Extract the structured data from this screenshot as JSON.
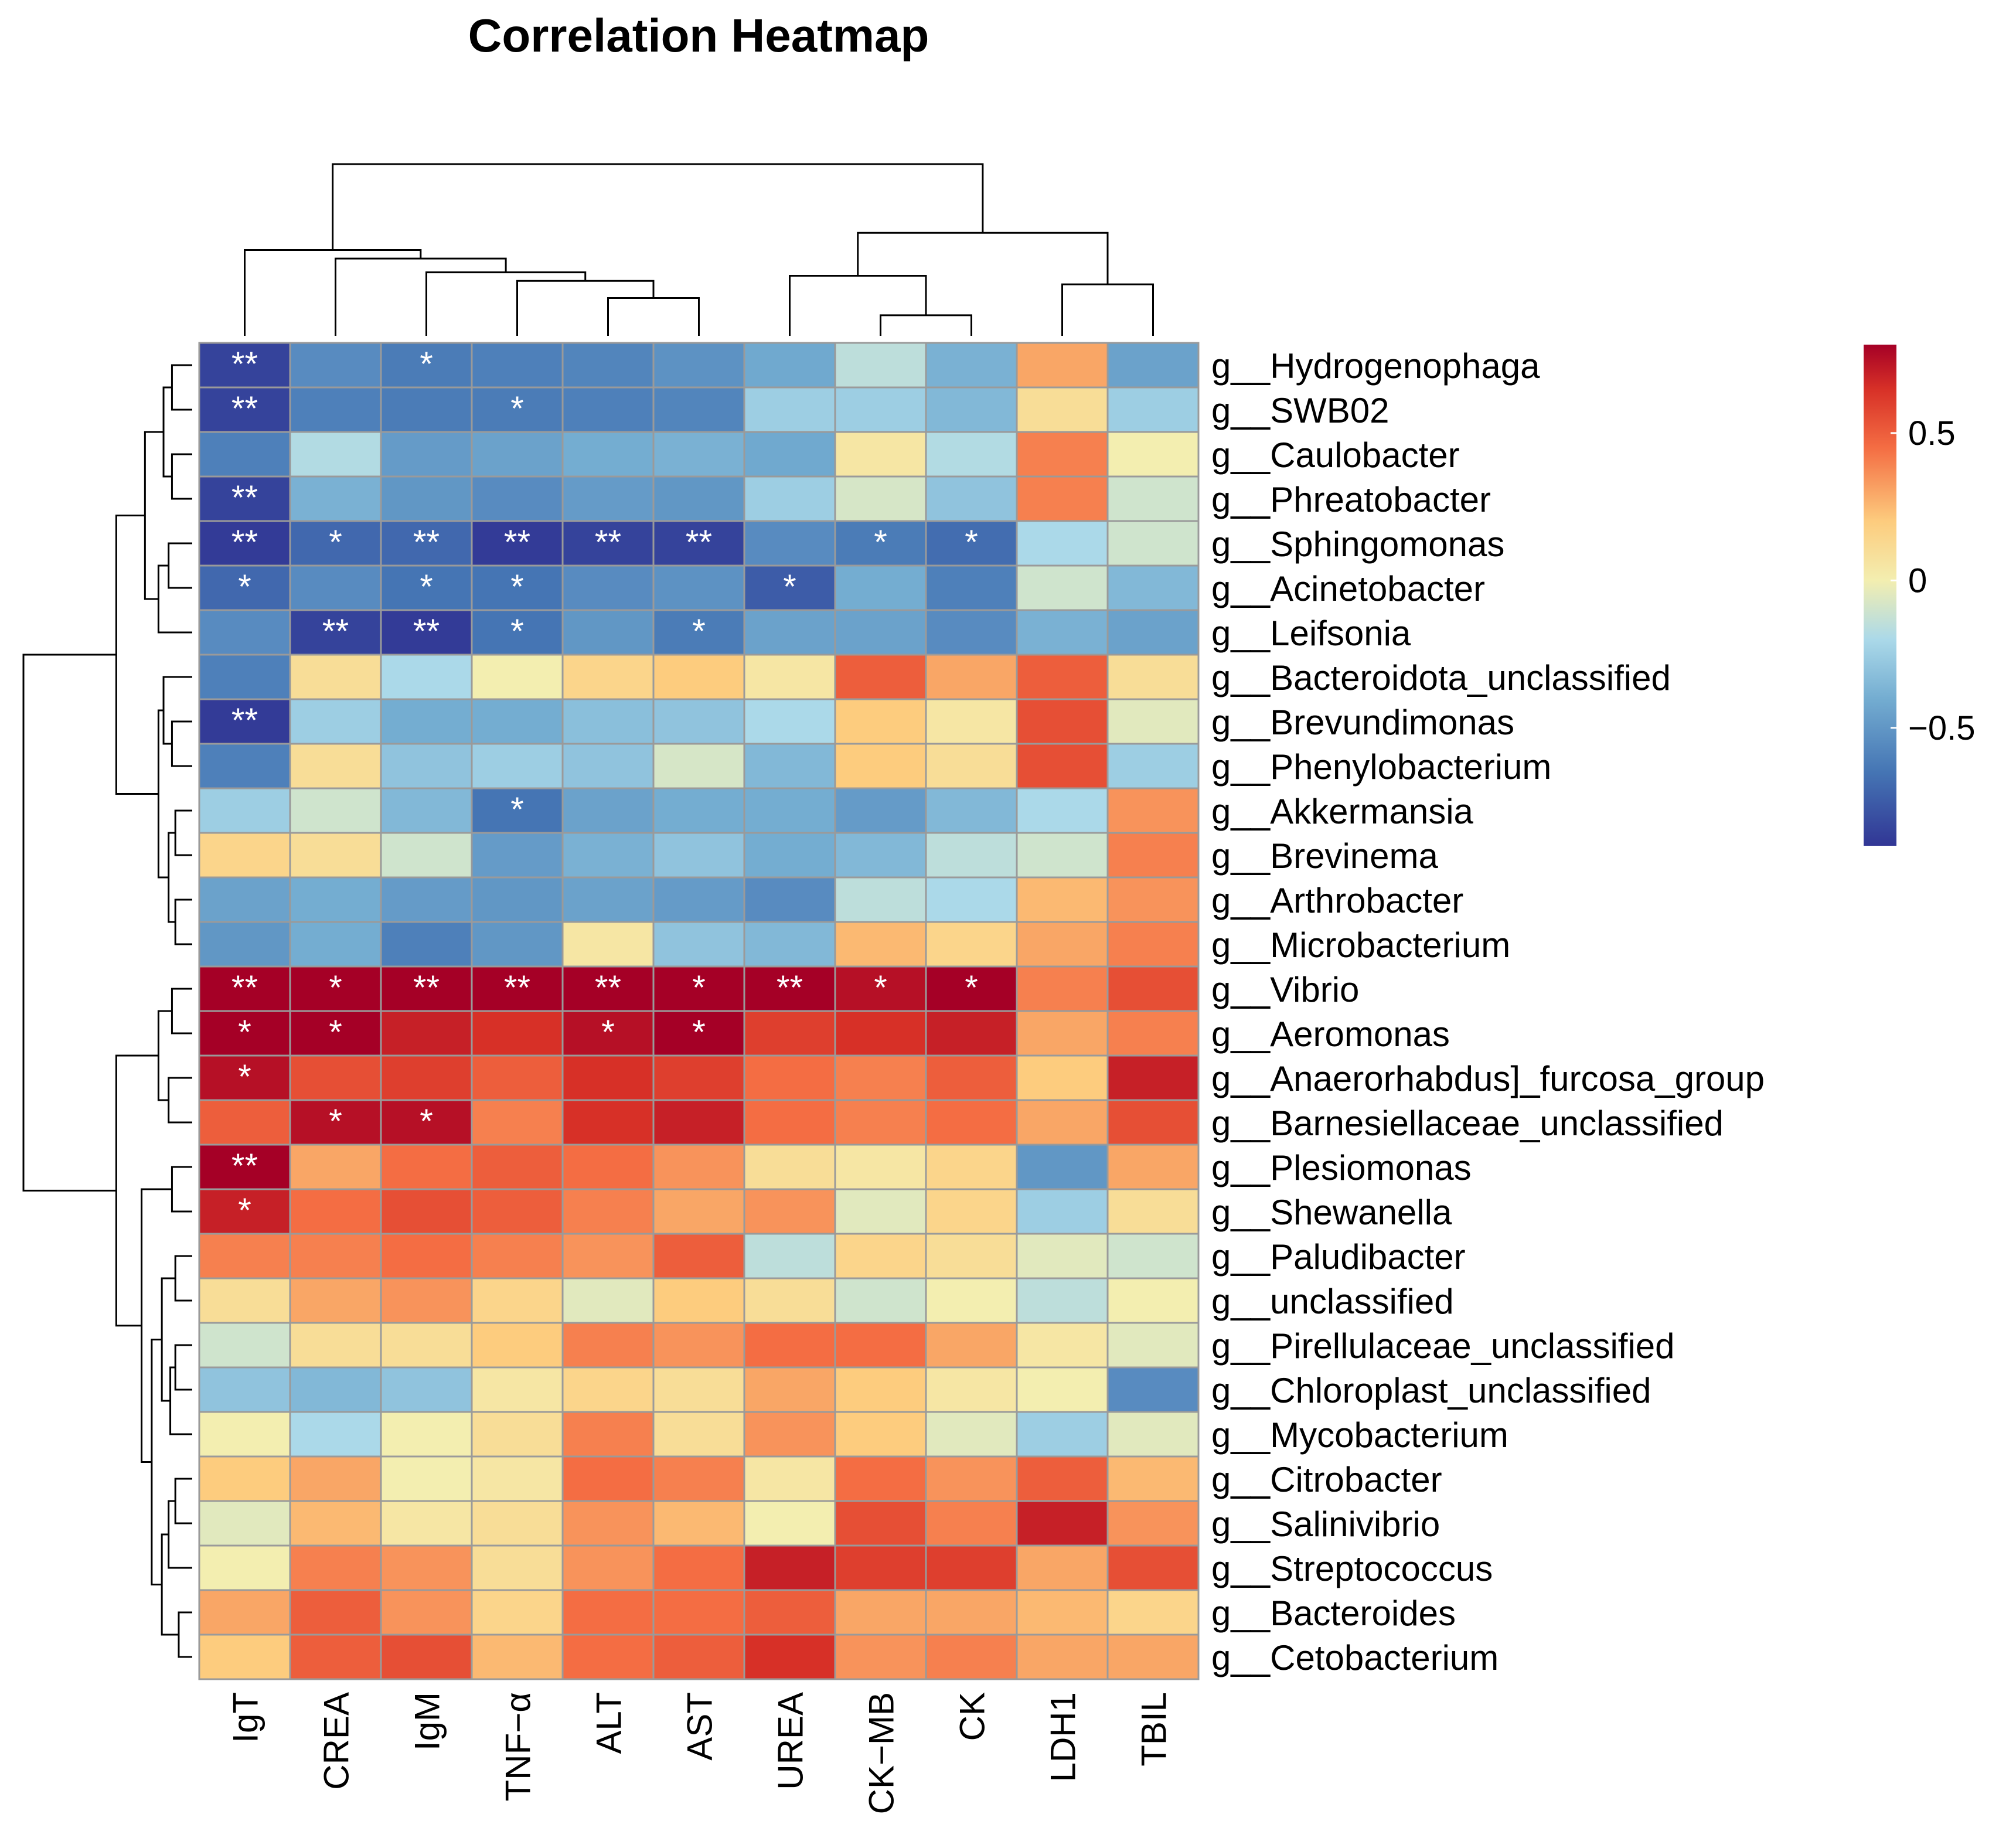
{
  "chart_data": {
    "type": "heatmap",
    "title": "Correlation Heatmap",
    "columns": [
      "IgT",
      "CREA",
      "IgM",
      "TNF−α",
      "ALT",
      "AST",
      "UREA",
      "CK−MB",
      "CK",
      "LDH1",
      "TBIL"
    ],
    "rows": [
      "g__Hydrogenophaga",
      "g__SWB02",
      "g__Caulobacter",
      "g__Phreatobacter",
      "g__Sphingomonas",
      "g__Acinetobacter",
      "g__Leifsonia",
      "g__Bacteroidota_unclassified",
      "g__Brevundimonas",
      "g__Phenylobacterium",
      "g__Akkermansia",
      "g__Brevinema",
      "g__Arthrobacter",
      "g__Microbacterium",
      "g__Vibrio",
      "g__Aeromonas",
      "g__Anaerorhabdus]_furcosa_group",
      "g__Barnesiellaceae_unclassified",
      "g__Plesiomonas",
      "g__Shewanella",
      "g__Paludibacter",
      "g__unclassified",
      "g__Pirellulaceae_unclassified",
      "g__Chloroplast_unclassified",
      "g__Mycobacterium",
      "g__Citrobacter",
      "g__Salinivibrio",
      "g__Streptococcus",
      "g__Bacteroides",
      "g__Cetobacterium"
    ],
    "values": [
      [
        -0.85,
        -0.55,
        -0.62,
        -0.6,
        -0.58,
        -0.52,
        -0.42,
        -0.15,
        -0.38,
        0.3,
        -0.45
      ],
      [
        -0.85,
        -0.6,
        -0.62,
        -0.62,
        -0.6,
        -0.58,
        -0.25,
        -0.25,
        -0.35,
        0.1,
        -0.25
      ],
      [
        -0.6,
        -0.18,
        -0.48,
        -0.45,
        -0.4,
        -0.38,
        -0.42,
        0.05,
        -0.18,
        0.4,
        0.0
      ],
      [
        -0.85,
        -0.38,
        -0.5,
        -0.55,
        -0.48,
        -0.5,
        -0.25,
        -0.08,
        -0.3,
        0.4,
        -0.1
      ],
      [
        -0.88,
        -0.7,
        -0.7,
        -0.88,
        -0.85,
        -0.85,
        -0.55,
        -0.62,
        -0.68,
        -0.2,
        -0.1
      ],
      [
        -0.7,
        -0.55,
        -0.65,
        -0.65,
        -0.55,
        -0.52,
        -0.75,
        -0.4,
        -0.6,
        -0.1,
        -0.35
      ],
      [
        -0.55,
        -0.85,
        -0.88,
        -0.65,
        -0.5,
        -0.62,
        -0.45,
        -0.45,
        -0.55,
        -0.38,
        -0.45
      ],
      [
        -0.6,
        0.1,
        -0.2,
        0.0,
        0.15,
        0.2,
        0.05,
        0.5,
        0.3,
        0.5,
        0.1
      ],
      [
        -0.88,
        -0.25,
        -0.4,
        -0.4,
        -0.32,
        -0.3,
        -0.2,
        0.2,
        0.05,
        0.55,
        -0.05
      ],
      [
        -0.6,
        0.1,
        -0.3,
        -0.25,
        -0.3,
        -0.08,
        -0.35,
        0.2,
        0.1,
        0.55,
        -0.25
      ],
      [
        -0.25,
        -0.1,
        -0.35,
        -0.65,
        -0.45,
        -0.4,
        -0.4,
        -0.48,
        -0.35,
        -0.2,
        0.35
      ],
      [
        0.15,
        0.1,
        -0.1,
        -0.48,
        -0.38,
        -0.3,
        -0.4,
        -0.35,
        -0.15,
        -0.1,
        0.4
      ],
      [
        -0.45,
        -0.4,
        -0.48,
        -0.5,
        -0.45,
        -0.48,
        -0.55,
        -0.15,
        -0.2,
        0.25,
        0.35
      ],
      [
        -0.5,
        -0.4,
        -0.6,
        -0.5,
        0.05,
        -0.3,
        -0.35,
        0.25,
        0.15,
        0.3,
        0.4
      ],
      [
        0.85,
        0.85,
        0.85,
        0.85,
        0.85,
        0.85,
        0.85,
        0.75,
        0.8,
        0.4,
        0.55
      ],
      [
        0.8,
        0.8,
        0.7,
        0.65,
        0.75,
        0.8,
        0.6,
        0.65,
        0.7,
        0.3,
        0.4
      ],
      [
        0.75,
        0.55,
        0.6,
        0.5,
        0.65,
        0.6,
        0.45,
        0.4,
        0.5,
        0.2,
        0.7
      ],
      [
        0.5,
        0.75,
        0.75,
        0.4,
        0.65,
        0.7,
        0.45,
        0.4,
        0.45,
        0.3,
        0.55
      ],
      [
        0.85,
        0.3,
        0.45,
        0.5,
        0.45,
        0.35,
        0.1,
        0.05,
        0.15,
        -0.5,
        0.3
      ],
      [
        0.7,
        0.45,
        0.55,
        0.5,
        0.4,
        0.3,
        0.35,
        -0.05,
        0.15,
        -0.25,
        0.1
      ],
      [
        0.4,
        0.4,
        0.45,
        0.4,
        0.35,
        0.5,
        -0.15,
        0.15,
        0.1,
        -0.05,
        -0.1
      ],
      [
        0.1,
        0.3,
        0.35,
        0.15,
        -0.05,
        0.2,
        0.1,
        -0.1,
        0.0,
        -0.15,
        0.0
      ],
      [
        -0.1,
        0.1,
        0.1,
        0.2,
        0.4,
        0.35,
        0.45,
        0.45,
        0.3,
        0.05,
        -0.05
      ],
      [
        -0.3,
        -0.35,
        -0.3,
        0.05,
        0.15,
        0.1,
        0.3,
        0.2,
        0.05,
        0.0,
        -0.55
      ],
      [
        0.0,
        -0.2,
        0.0,
        0.1,
        0.4,
        0.1,
        0.35,
        0.2,
        -0.05,
        -0.25,
        -0.05
      ],
      [
        0.2,
        0.3,
        0.0,
        0.05,
        0.45,
        0.4,
        0.05,
        0.45,
        0.35,
        0.5,
        0.25
      ],
      [
        -0.05,
        0.25,
        0.05,
        0.1,
        0.35,
        0.25,
        0.0,
        0.55,
        0.4,
        0.7,
        0.35
      ],
      [
        0.0,
        0.4,
        0.35,
        0.1,
        0.35,
        0.45,
        0.7,
        0.6,
        0.6,
        0.3,
        0.55
      ],
      [
        0.3,
        0.5,
        0.35,
        0.15,
        0.45,
        0.45,
        0.5,
        0.3,
        0.3,
        0.25,
        0.15
      ],
      [
        0.2,
        0.5,
        0.55,
        0.25,
        0.45,
        0.5,
        0.65,
        0.35,
        0.4,
        0.3,
        0.3
      ]
    ],
    "significance": [
      [
        "**",
        "",
        "*",
        "",
        "",
        "",
        "",
        "",
        "",
        "",
        ""
      ],
      [
        "**",
        "",
        "",
        "*",
        "",
        "",
        "",
        "",
        "",
        "",
        ""
      ],
      [
        "",
        "",
        "",
        "",
        "",
        "",
        "",
        "",
        "",
        "",
        ""
      ],
      [
        "**",
        "",
        "",
        "",
        "",
        "",
        "",
        "",
        "",
        "",
        ""
      ],
      [
        "**",
        "*",
        "**",
        "**",
        "**",
        "**",
        "",
        "*",
        "*",
        "",
        ""
      ],
      [
        "*",
        "",
        "*",
        "*",
        "",
        "",
        "*",
        "",
        "",
        "",
        ""
      ],
      [
        "",
        "**",
        "**",
        "*",
        "",
        "*",
        "",
        "",
        "",
        "",
        ""
      ],
      [
        "",
        "",
        "",
        "",
        "",
        "",
        "",
        "",
        "",
        "",
        ""
      ],
      [
        "**",
        "",
        "",
        "",
        "",
        "",
        "",
        "",
        "",
        "",
        ""
      ],
      [
        "",
        "",
        "",
        "",
        "",
        "",
        "",
        "",
        "",
        "",
        ""
      ],
      [
        "",
        "",
        "",
        "*",
        "",
        "",
        "",
        "",
        "",
        "",
        ""
      ],
      [
        "",
        "",
        "",
        "",
        "",
        "",
        "",
        "",
        "",
        "",
        ""
      ],
      [
        "",
        "",
        "",
        "",
        "",
        "",
        "",
        "",
        "",
        "",
        ""
      ],
      [
        "",
        "",
        "",
        "",
        "",
        "",
        "",
        "",
        "",
        "",
        ""
      ],
      [
        "**",
        "*",
        "**",
        "**",
        "**",
        "*",
        "**",
        "*",
        "*",
        "",
        ""
      ],
      [
        "*",
        "*",
        "",
        "",
        "*",
        "*",
        "",
        "",
        "",
        "",
        ""
      ],
      [
        "*",
        "",
        "",
        "",
        "",
        "",
        "",
        "",
        "",
        "",
        ""
      ],
      [
        "",
        "*",
        "*",
        "",
        "",
        "",
        "",
        "",
        "",
        "",
        ""
      ],
      [
        "**",
        "",
        "",
        "",
        "",
        "",
        "",
        "",
        "",
        "",
        ""
      ],
      [
        "*",
        "",
        "",
        "",
        "",
        "",
        "",
        "",
        "",
        "",
        ""
      ],
      [
        "",
        "",
        "",
        "",
        "",
        "",
        "",
        "",
        "",
        "",
        ""
      ],
      [
        "",
        "",
        "",
        "",
        "",
        "",
        "",
        "",
        "",
        "",
        ""
      ],
      [
        "",
        "",
        "",
        "",
        "",
        "",
        "",
        "",
        "",
        "",
        ""
      ],
      [
        "",
        "",
        "",
        "",
        "",
        "",
        "",
        "",
        "",
        "",
        ""
      ],
      [
        "",
        "",
        "",
        "",
        "",
        "",
        "",
        "",
        "",
        "",
        ""
      ],
      [
        "",
        "",
        "",
        "",
        "",
        "",
        "",
        "",
        "",
        "",
        ""
      ],
      [
        "",
        "",
        "",
        "",
        "",
        "",
        "",
        "",
        "",
        "",
        ""
      ],
      [
        "",
        "",
        "",
        "",
        "",
        "",
        "",
        "",
        "",
        "",
        ""
      ],
      [
        "",
        "",
        "",
        "",
        "",
        "",
        "",
        "",
        "",
        "",
        ""
      ],
      [
        "",
        "",
        "",
        "",
        "",
        "",
        "",
        "",
        "",
        "",
        ""
      ]
    ],
    "color_scale": {
      "range": [
        -0.9,
        0.8
      ],
      "ticks": [
        {
          "value": 0.5,
          "label": "0.5"
        },
        {
          "value": 0,
          "label": "0"
        },
        {
          "value": -0.5,
          "label": "−0.5"
        }
      ],
      "stops": [
        {
          "value": -0.9,
          "color": "#313695"
        },
        {
          "value": -0.65,
          "color": "#4575b4"
        },
        {
          "value": -0.4,
          "color": "#74add1"
        },
        {
          "value": -0.2,
          "color": "#abd9e9"
        },
        {
          "value": 0.0,
          "color": "#f3eeb0"
        },
        {
          "value": 0.2,
          "color": "#fdcc7e"
        },
        {
          "value": 0.45,
          "color": "#f46d43"
        },
        {
          "value": 0.65,
          "color": "#d73027"
        },
        {
          "value": 0.8,
          "color": "#a50026"
        }
      ]
    },
    "column_dendrogram": {
      "leaves": 11,
      "merges": [
        {
          "a": {
            "leaf": 7
          },
          "b": {
            "leaf": 8
          },
          "h": 0.12
        },
        {
          "a": {
            "leaf": 9
          },
          "b": {
            "leaf": 10
          },
          "h": 0.3
        },
        {
          "a": {
            "leaf": 4
          },
          "b": {
            "leaf": 5
          },
          "h": 0.22
        },
        {
          "a": {
            "leaf": 6
          },
          "b": {
            "node": 0
          },
          "h": 0.35
        },
        {
          "a": {
            "node": 3
          },
          "b": {
            "node": 1
          },
          "h": 0.6
        },
        {
          "a": {
            "leaf": 3
          },
          "b": {
            "node": 2
          },
          "h": 0.32
        },
        {
          "a": {
            "leaf": 2
          },
          "b": {
            "node": 5
          },
          "h": 0.37
        },
        {
          "a": {
            "leaf": 1
          },
          "b": {
            "node": 6
          },
          "h": 0.45
        },
        {
          "a": {
            "leaf": 0
          },
          "b": {
            "node": 7
          },
          "h": 0.5
        },
        {
          "a": {
            "node": 8
          },
          "b": {
            "node": 4
          },
          "h": 1.0
        }
      ]
    },
    "row_dendrogram": {
      "leaves": 30,
      "merges": [
        {
          "a": {
            "leaf": 0
          },
          "b": {
            "leaf": 1
          },
          "h": 0.12
        },
        {
          "a": {
            "leaf": 2
          },
          "b": {
            "leaf": 3
          },
          "h": 0.12
        },
        {
          "a": {
            "node": 0
          },
          "b": {
            "node": 1
          },
          "h": 0.17
        },
        {
          "a": {
            "leaf": 4
          },
          "b": {
            "leaf": 5
          },
          "h": 0.14
        },
        {
          "a": {
            "node": 3
          },
          "b": {
            "leaf": 6
          },
          "h": 0.2
        },
        {
          "a": {
            "node": 2
          },
          "b": {
            "node": 4
          },
          "h": 0.28
        },
        {
          "a": {
            "leaf": 8
          },
          "b": {
            "leaf": 9
          },
          "h": 0.12
        },
        {
          "a": {
            "leaf": 7
          },
          "b": {
            "node": 6
          },
          "h": 0.17
        },
        {
          "a": {
            "leaf": 10
          },
          "b": {
            "leaf": 11
          },
          "h": 0.1
        },
        {
          "a": {
            "leaf": 12
          },
          "b": {
            "leaf": 13
          },
          "h": 0.1
        },
        {
          "a": {
            "node": 8
          },
          "b": {
            "node": 9
          },
          "h": 0.14
        },
        {
          "a": {
            "node": 7
          },
          "b": {
            "node": 10
          },
          "h": 0.2
        },
        {
          "a": {
            "node": 5
          },
          "b": {
            "node": 11
          },
          "h": 0.45
        },
        {
          "a": {
            "leaf": 14
          },
          "b": {
            "leaf": 15
          },
          "h": 0.12
        },
        {
          "a": {
            "leaf": 16
          },
          "b": {
            "leaf": 17
          },
          "h": 0.14
        },
        {
          "a": {
            "node": 13
          },
          "b": {
            "node": 14
          },
          "h": 0.2
        },
        {
          "a": {
            "leaf": 18
          },
          "b": {
            "leaf": 19
          },
          "h": 0.12
        },
        {
          "a": {
            "leaf": 20
          },
          "b": {
            "leaf": 21
          },
          "h": 0.1
        },
        {
          "a": {
            "leaf": 22
          },
          "b": {
            "leaf": 23
          },
          "h": 0.1
        },
        {
          "a": {
            "node": 18
          },
          "b": {
            "leaf": 24
          },
          "h": 0.13
        },
        {
          "a": {
            "node": 17
          },
          "b": {
            "node": 19
          },
          "h": 0.18
        },
        {
          "a": {
            "leaf": 25
          },
          "b": {
            "leaf": 26
          },
          "h": 0.1
        },
        {
          "a": {
            "node": 21
          },
          "b": {
            "leaf": 27
          },
          "h": 0.14
        },
        {
          "a": {
            "leaf": 28
          },
          "b": {
            "leaf": 29
          },
          "h": 0.08
        },
        {
          "a": {
            "node": 22
          },
          "b": {
            "node": 23
          },
          "h": 0.18
        },
        {
          "a": {
            "node": 20
          },
          "b": {
            "node": 24
          },
          "h": 0.24
        },
        {
          "a": {
            "node": 16
          },
          "b": {
            "node": 25
          },
          "h": 0.3
        },
        {
          "a": {
            "node": 15
          },
          "b": {
            "node": 26
          },
          "h": 0.45
        },
        {
          "a": {
            "node": 12
          },
          "b": {
            "node": 27
          },
          "h": 1.0
        }
      ]
    }
  }
}
